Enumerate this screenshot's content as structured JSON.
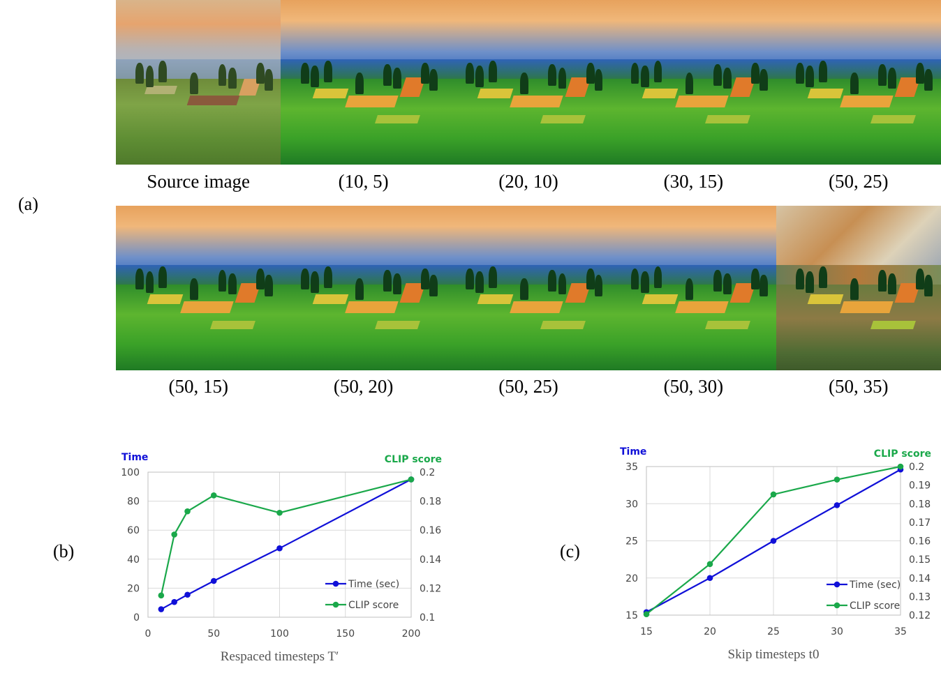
{
  "panel_labels": {
    "a": "(a)",
    "b": "(b)",
    "c": "(c)"
  },
  "image_grid": {
    "row1_captions": [
      "Source image",
      "(10, 5)",
      "(20, 10)",
      "(30, 15)",
      "(50, 25)"
    ],
    "row2_captions": [
      "(50, 15)",
      "(50, 20)",
      "(50, 25)",
      "(50, 30)",
      "(50, 35)"
    ]
  },
  "colors": {
    "time": "#1010d8",
    "clip": "#1aa84a",
    "grid": "#d9d9d9",
    "axis": "#bfbfbf"
  },
  "chart_data": [
    {
      "type": "line",
      "panel": "b",
      "xlabel": "Respaced timesteps T′",
      "ylabel_left": "Time",
      "ylabel_right": "CLIP score",
      "xlim": [
        0,
        200
      ],
      "ylim_left": [
        0,
        100
      ],
      "ylim_right": [
        0.1,
        0.2
      ],
      "xticks": [
        "0",
        "50",
        "100",
        "150",
        "200"
      ],
      "yticks_left": [
        "0",
        "20",
        "40",
        "60",
        "80",
        "100"
      ],
      "yticks_right": [
        "0.1",
        "0.12",
        "0.14",
        "0.16",
        "0.18",
        "0.2"
      ],
      "grid": true,
      "legend_position": "bottom-right",
      "series": [
        {
          "name": "Time (sec)",
          "axis": "left",
          "x": [
            10,
            20,
            30,
            50,
            100,
            200
          ],
          "values": [
            5.5,
            10.5,
            15.5,
            25,
            47.5,
            95
          ]
        },
        {
          "name": "CLIP score",
          "axis": "right",
          "x": [
            10,
            20,
            30,
            50,
            100,
            200
          ],
          "values": [
            0.115,
            0.157,
            0.173,
            0.184,
            0.172,
            0.195
          ]
        }
      ]
    },
    {
      "type": "line",
      "panel": "c",
      "xlabel": "Skip timesteps t0",
      "ylabel_left": "Time",
      "ylabel_right": "CLIP score",
      "xlim": [
        15,
        35
      ],
      "ylim_left": [
        15,
        35
      ],
      "ylim_right": [
        0.12,
        0.2
      ],
      "xticks": [
        "15",
        "20",
        "25",
        "30",
        "35"
      ],
      "yticks_left": [
        "15",
        "20",
        "25",
        "30",
        "35"
      ],
      "yticks_right": [
        "0.12",
        "0.13",
        "0.14",
        "0.15",
        "0.16",
        "0.17",
        "0.18",
        "0.19",
        "0.2"
      ],
      "grid": true,
      "legend_position": "bottom-right",
      "series": [
        {
          "name": "Time (sec)",
          "axis": "left",
          "x": [
            15,
            20,
            25,
            30,
            35
          ],
          "values": [
            15.4,
            20,
            25,
            29.8,
            34.6
          ]
        },
        {
          "name": "CLIP score",
          "axis": "right",
          "x": [
            15,
            20,
            25,
            30,
            35
          ],
          "values": [
            0.1205,
            0.1475,
            0.185,
            0.193,
            0.2
          ]
        }
      ]
    }
  ]
}
